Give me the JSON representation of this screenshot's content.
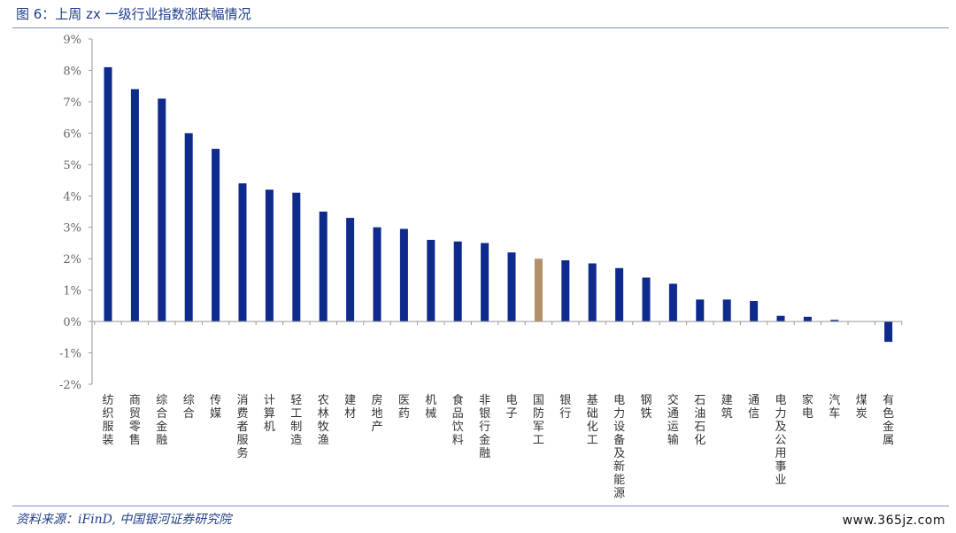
{
  "header": {
    "figure_title": "图 6：上周 zx 一级行业指数涨跌幅情况"
  },
  "footer": {
    "source": "资料来源：iFinD,  中国银河证券研究院",
    "watermark": "www.365jz.com"
  },
  "colors": {
    "bar": "#0d2a8c",
    "highlight": "#b39168",
    "title": "#1f3d8a",
    "rule": "#7f93c8"
  },
  "chart_data": {
    "type": "bar",
    "title": "",
    "xlabel": "",
    "ylabel": "",
    "ylim": [
      -2,
      9
    ],
    "yticks": [
      "-2%",
      "-1%",
      "0%",
      "1%",
      "2%",
      "3%",
      "4%",
      "5%",
      "6%",
      "7%",
      "8%",
      "9%"
    ],
    "grid": false,
    "highlight_category": "国防军工",
    "categories": [
      "纺织服装",
      "商贸零售",
      "综合金融",
      "综合",
      "传媒",
      "消费者服务",
      "计算机",
      "轻工制造",
      "农林牧渔",
      "建材",
      "房地产",
      "医药",
      "机械",
      "食品饮料",
      "非银行金融",
      "电子",
      "国防军工",
      "银行",
      "基础化工",
      "电力设备及新能源",
      "钢铁",
      "交通运输",
      "石油石化",
      "建筑",
      "通信",
      "电力及公用事业",
      "家电",
      "汽车",
      "煤炭",
      "有色金属"
    ],
    "values": [
      8.1,
      7.4,
      7.1,
      6.0,
      5.5,
      4.4,
      4.2,
      4.1,
      3.5,
      3.3,
      3.0,
      2.95,
      2.6,
      2.55,
      2.5,
      2.2,
      2.0,
      1.95,
      1.85,
      1.7,
      1.4,
      1.2,
      0.7,
      0.7,
      0.65,
      0.18,
      0.15,
      0.05,
      0.0,
      -0.65
    ]
  }
}
